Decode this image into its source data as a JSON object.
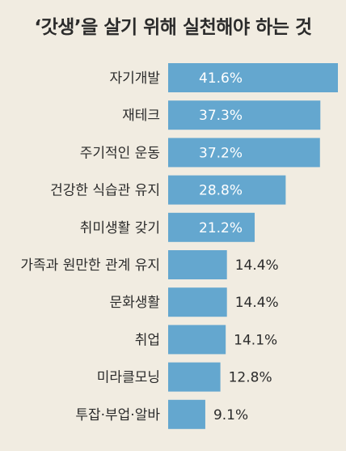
{
  "chart_data": {
    "type": "bar",
    "orientation": "horizontal",
    "title": "‘갓생’을 살기 위해 실천해야 하는 것",
    "categories": [
      "자기개발",
      "재테크",
      "주기적인 운동",
      "건강한 식습관 유지",
      "취미생활 갖기",
      "가족과 원만한 관계 유지",
      "문화생활",
      "취업",
      "미라클모닝",
      "투잡·부업·알바"
    ],
    "values": [
      41.6,
      37.3,
      37.2,
      28.8,
      21.2,
      14.4,
      14.4,
      14.1,
      12.8,
      9.1
    ],
    "value_labels": [
      "41.6%",
      "37.3%",
      "37.2%",
      "28.8%",
      "21.2%",
      "14.4%",
      "14.4%",
      "14.1%",
      "12.8%",
      "9.1%"
    ],
    "xlim": [
      0,
      41.6
    ],
    "grid": false,
    "legend": "none",
    "bar_color": "#64a7cf"
  }
}
